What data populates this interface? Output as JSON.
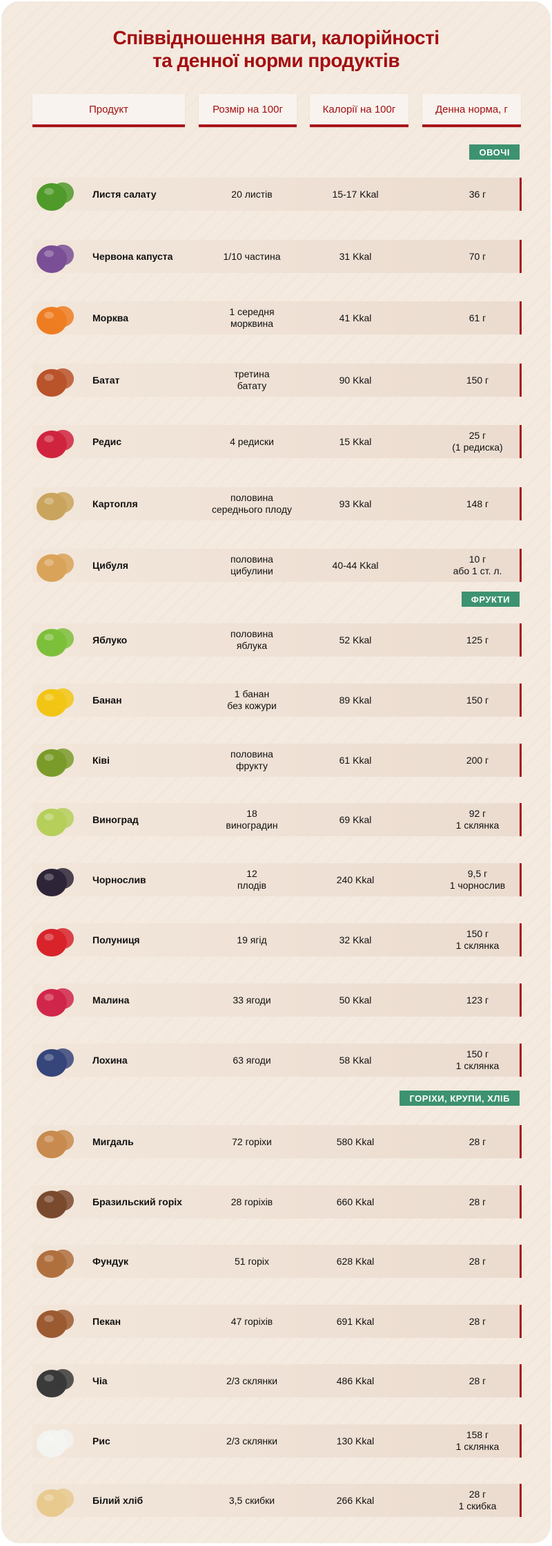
{
  "title_line1": "Співвідношення ваги, калорійності",
  "title_line2": "та денної норми продуктів",
  "headers": [
    "Продукт",
    "Розмір на 100г",
    "Калорії на 100г",
    "Денна норма, г"
  ],
  "colors": {
    "title": "#a30f12",
    "badge": "#3d9270",
    "accent": "#a8141a"
  },
  "sections": [
    {
      "label": "ОВОЧІ",
      "items": [
        {
          "name": "Листя салату",
          "size": "20 листів",
          "cal": "15-17 Kkal",
          "norm": "36 г",
          "icon": "lettuce-icon",
          "color": "#4f9a2a"
        },
        {
          "name": "Червона капуста",
          "size": "1/10 частина",
          "cal": "31 Kkal",
          "norm": "70 г",
          "icon": "red-cabbage-icon",
          "color": "#7a4f96"
        },
        {
          "name": "Морква",
          "size": "1 середня\nморквина",
          "cal": "41 Kkal",
          "norm": "61 г",
          "icon": "carrot-icon",
          "color": "#ee7d22"
        },
        {
          "name": "Батат",
          "size": "третина\nбатату",
          "cal": "90 Kkal",
          "norm": "150 г",
          "icon": "sweet-potato-icon",
          "color": "#b8532a"
        },
        {
          "name": "Редис",
          "size": "4 редиски",
          "cal": "15 Kkal",
          "norm": "25 г\n(1 редиска)",
          "icon": "radish-icon",
          "color": "#d0243e"
        },
        {
          "name": "Картопля",
          "size": "половина\nсереднього плоду",
          "cal": "93 Kkal",
          "norm": "148 г",
          "icon": "potato-icon",
          "color": "#c9a45c"
        },
        {
          "name": "Цибуля",
          "size": "половина\nцибулини",
          "cal": "40-44 Kkal",
          "norm": "10 г\nабо 1 ст. л.",
          "icon": "onion-icon",
          "color": "#d9a35a"
        }
      ]
    },
    {
      "label": "ФРУКТИ",
      "items": [
        {
          "name": "Яблуко",
          "size": "половина\nяблука",
          "cal": "52 Kkal",
          "norm": "125 г",
          "icon": "apple-icon",
          "color": "#7cbf3a"
        },
        {
          "name": "Банан",
          "size": "1 банан\nбез кожури",
          "cal": "89 Kkal",
          "norm": "150 г",
          "icon": "banana-icon",
          "color": "#f2c514"
        },
        {
          "name": "Ківі",
          "size": "половина\nфрукту",
          "cal": "61 Kkal",
          "norm": "200 г",
          "icon": "kiwi-icon",
          "color": "#7a9b2a"
        },
        {
          "name": "Виноград",
          "size": "18\nвиноградин",
          "cal": "69 Kkal",
          "norm": "92 г\n1 склянка",
          "icon": "grapes-icon",
          "color": "#b5cf5a"
        },
        {
          "name": "Чорнослив",
          "size": "12\nплодів",
          "cal": "240 Kkal",
          "norm": "9,5 г\n1 чорнослив",
          "icon": "prune-icon",
          "color": "#2e2438"
        },
        {
          "name": "Полуниця",
          "size": "19 ягід",
          "cal": "32 Kkal",
          "norm": "150 г\n1 склянка",
          "icon": "strawberry-icon",
          "color": "#d8232b"
        },
        {
          "name": "Малина",
          "size": "33 ягоди",
          "cal": "50 Kkal",
          "norm": "123 г",
          "icon": "raspberry-icon",
          "color": "#d0264a"
        },
        {
          "name": "Лохина",
          "size": "63 ягоди",
          "cal": "58 Kkal",
          "norm": "150 г\n1 склянка",
          "icon": "blueberry-icon",
          "color": "#36457a"
        }
      ]
    },
    {
      "label": "ГОРІХИ, КРУПИ, ХЛІБ",
      "items": [
        {
          "name": "Мигдаль",
          "size": "72 горіхи",
          "cal": "580 Kkal",
          "norm": "28 г",
          "icon": "almond-icon",
          "color": "#c88a4e"
        },
        {
          "name": "Бразильский горіх",
          "size": "28 горіхів",
          "cal": "660 Kkal",
          "norm": "28 г",
          "icon": "brazil-nut-icon",
          "color": "#7a4a2e"
        },
        {
          "name": "Фундук",
          "size": "51 горіх",
          "cal": "628 Kkal",
          "norm": "28 г",
          "icon": "hazelnut-icon",
          "color": "#b0703e"
        },
        {
          "name": "Пекан",
          "size": "47 горіхів",
          "cal": "691 Kkal",
          "norm": "28 г",
          "icon": "pecan-icon",
          "color": "#9c5a30"
        },
        {
          "name": "Чіа",
          "size": "2/3 склянки",
          "cal": "486 Kkal",
          "norm": "28 г",
          "icon": "chia-icon",
          "color": "#3a3a3a"
        },
        {
          "name": "Рис",
          "size": "2/3 склянки",
          "cal": "130 Kkal",
          "norm": "158 г\n1 склянка",
          "icon": "rice-icon",
          "color": "#f3f3f0"
        },
        {
          "name": "Білий хліб",
          "size": "3,5 скибки",
          "cal": "266 Kkal",
          "norm": "28 г\n1 скибка",
          "icon": "bread-icon",
          "color": "#e8c98e"
        }
      ]
    }
  ]
}
